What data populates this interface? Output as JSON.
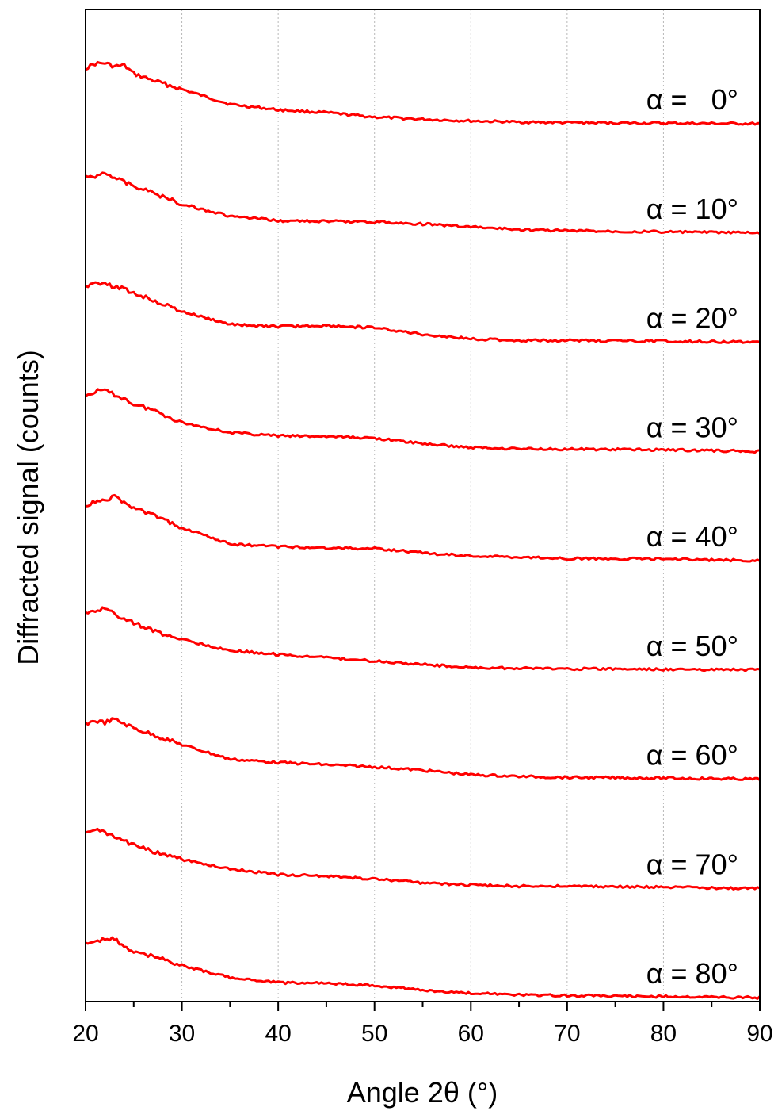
{
  "chart_data": {
    "type": "line",
    "xlabel": "Angle 2θ (°)",
    "ylabel": "Diffracted signal (counts)",
    "xlim": [
      20,
      90
    ],
    "xticks": [
      20,
      30,
      40,
      50,
      60,
      70,
      80,
      90
    ],
    "grid": "vertical dotted lines at major x ticks",
    "line_color": "#ff0000",
    "profile_x": [
      20,
      21,
      22,
      23,
      24,
      25,
      27,
      30,
      35,
      40,
      45,
      50,
      55,
      60,
      65,
      70,
      80,
      90
    ],
    "series": [
      {
        "name": "α =   0°",
        "label": "α =   0°",
        "values": [
          1.0,
          1.08,
          1.09,
          1.03,
          1.05,
          0.9,
          0.78,
          0.62,
          0.35,
          0.25,
          0.2,
          0.12,
          0.08,
          0.05,
          0.03,
          0.02,
          0.01,
          0.0
        ]
      },
      {
        "name": "α = 10°",
        "label": "α = 10°",
        "values": [
          1.0,
          1.02,
          1.1,
          1.0,
          0.92,
          0.85,
          0.72,
          0.52,
          0.3,
          0.22,
          0.21,
          0.2,
          0.16,
          0.11,
          0.06,
          0.04,
          0.02,
          0.0
        ]
      },
      {
        "name": "α = 20°",
        "label": "α = 20°",
        "values": [
          1.0,
          1.1,
          1.04,
          1.0,
          0.96,
          0.88,
          0.76,
          0.55,
          0.32,
          0.28,
          0.3,
          0.26,
          0.14,
          0.06,
          0.03,
          0.03,
          0.02,
          0.0
        ]
      },
      {
        "name": "α = 30°",
        "label": "α = 30°",
        "values": [
          1.0,
          1.08,
          1.1,
          1.02,
          0.95,
          0.85,
          0.75,
          0.52,
          0.34,
          0.28,
          0.27,
          0.24,
          0.14,
          0.07,
          0.05,
          0.04,
          0.03,
          0.0
        ]
      },
      {
        "name": "α = 40°",
        "label": "α = 40°",
        "values": [
          1.0,
          1.06,
          1.09,
          1.15,
          1.05,
          0.95,
          0.82,
          0.6,
          0.3,
          0.25,
          0.23,
          0.22,
          0.14,
          0.08,
          0.06,
          0.04,
          0.03,
          0.0
        ]
      },
      {
        "name": "α = 50°",
        "label": "α = 50°",
        "values": [
          1.0,
          1.06,
          1.12,
          1.0,
          0.92,
          0.85,
          0.7,
          0.55,
          0.35,
          0.28,
          0.22,
          0.16,
          0.1,
          0.04,
          0.03,
          0.02,
          0.01,
          0.0
        ]
      },
      {
        "name": "α = 60°",
        "label": "α = 60°",
        "values": [
          1.0,
          1.05,
          1.02,
          1.08,
          1.0,
          0.92,
          0.8,
          0.62,
          0.36,
          0.3,
          0.26,
          0.22,
          0.16,
          0.08,
          0.05,
          0.03,
          0.02,
          0.0
        ]
      },
      {
        "name": "α = 70°",
        "label": "α = 70°",
        "values": [
          1.0,
          1.06,
          1.0,
          0.92,
          0.86,
          0.78,
          0.66,
          0.52,
          0.35,
          0.25,
          0.22,
          0.17,
          0.1,
          0.06,
          0.04,
          0.04,
          0.02,
          0.0
        ]
      },
      {
        "name": "α = 80°",
        "label": "α = 80°",
        "values": [
          1.0,
          1.02,
          1.04,
          1.06,
          0.92,
          0.82,
          0.75,
          0.58,
          0.36,
          0.27,
          0.26,
          0.22,
          0.13,
          0.08,
          0.05,
          0.04,
          0.02,
          0.0
        ]
      }
    ]
  }
}
